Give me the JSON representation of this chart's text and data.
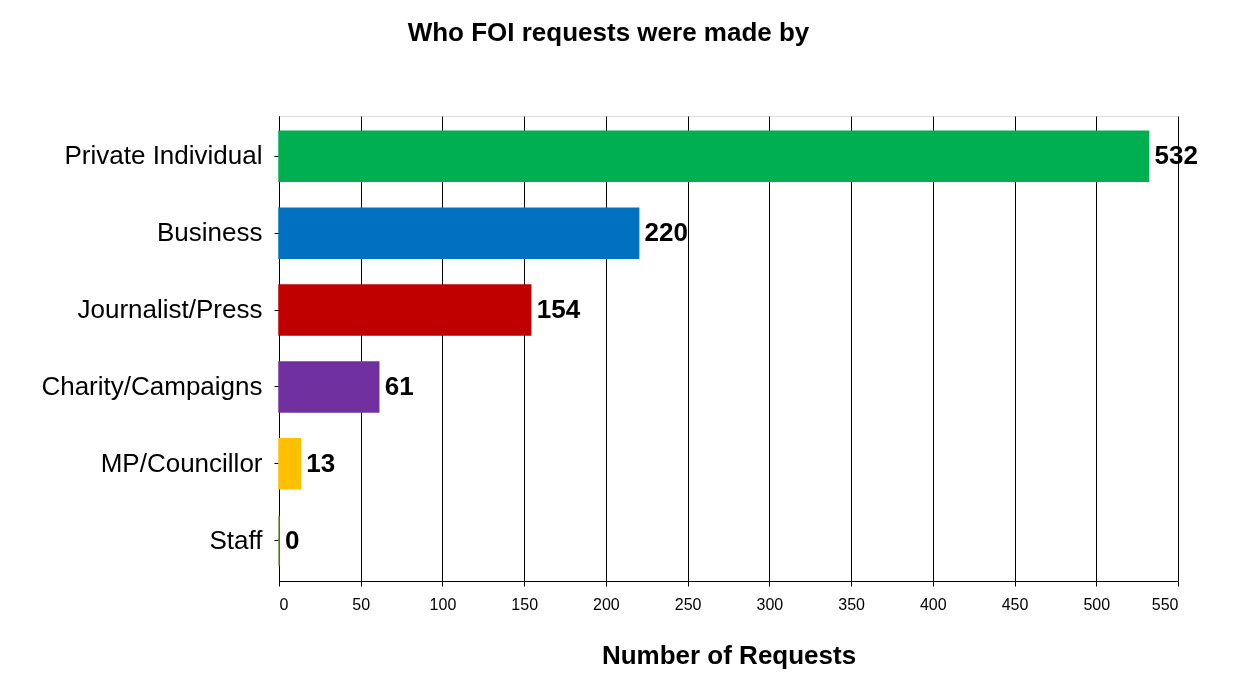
{
  "chart_data": {
    "type": "bar",
    "orientation": "horizontal",
    "title": "Who FOI requests were made by",
    "xlabel": "Number of Requests",
    "categories": [
      "Private Individual",
      "Business",
      "Journalist/Press",
      "Charity/Campaigns",
      "MP/Councillor",
      "Staff"
    ],
    "values": [
      532,
      220,
      154,
      61,
      13,
      0
    ],
    "colors": [
      "#00b050",
      "#0070c0",
      "#c00000",
      "#7030a0",
      "#ffc000",
      "#77933c"
    ],
    "xlim": [
      0,
      550
    ],
    "xticks": [
      0,
      50,
      100,
      150,
      200,
      250,
      300,
      350,
      400,
      450,
      500,
      550
    ],
    "grid": "x",
    "data_labels": true
  }
}
